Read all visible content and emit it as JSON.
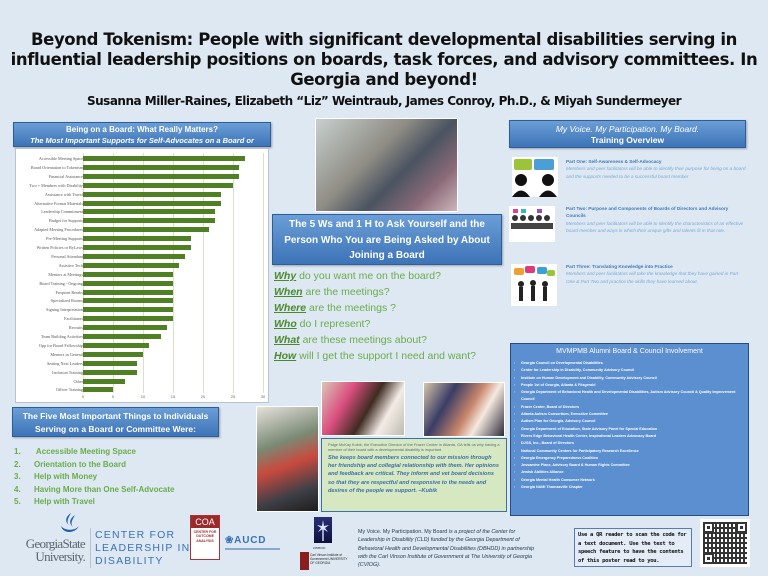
{
  "header": {
    "title": "Beyond Tokenism: People with significant developmental disabilities serving in influential leadership positions on boards, task forces, and advisory committees. In Georgia and beyond!",
    "authors": "Susanna Miller-Raines, Elizabeth “Liz” Weintraub, James Conroy, Ph.D., & Miyah Sundermeyer"
  },
  "left": {
    "banner_title": "Being on a Board: What Really Matters?",
    "banner_subtitle": "The Most Important Supports for Self-Advocates on a Board or Committee",
    "top5_title": "The Five Most Important Things to Individuals Serving on a Board or Committee Were:",
    "top5": [
      {
        "num": "1.",
        "text": " Accessible Meeting Space"
      },
      {
        "num": "2.",
        "text": "Orientation to the Board"
      },
      {
        "num": "3.",
        "text": "Help with Money"
      },
      {
        "num": "4.",
        "text": "Having More than One Self-Advocate"
      },
      {
        "num": "5.",
        "text": "Help with Travel"
      }
    ]
  },
  "chart_data": {
    "type": "bar",
    "orientation": "horizontal",
    "title": "Being on a Board: What Really Matters?",
    "subtitle": "The Most Important Supports for Self-Advocates on a Board or Committee",
    "categories": [
      "Accessible Meeting Space",
      "Board Orientation to Tokenism",
      "Financial Assistance",
      "Two + Members with Disability",
      "Assistance with Travel",
      "Alternative Format Materials",
      "Leadership Commitment",
      "Budget for Supports",
      "Adapted Meeting Procedures",
      "Pre-Meeting Supports",
      "Written Policies or ByLaws",
      "Personal Attendant",
      "Assistive Tech",
      "Mentors at Meetings",
      "Board Training - Ongoing",
      "Frequent Breaks",
      "Specialized Rooms",
      "Signing Interpretation",
      "Facilitators",
      "Recruits",
      "Team Building Activities",
      "Opp for Board Fellowship",
      "Mentors in General",
      "Seating Next Leaders",
      "Inclusion Training",
      "Other",
      "Officer Training"
    ],
    "values": [
      27,
      26,
      26,
      25,
      23,
      23,
      22,
      22,
      21,
      18,
      18,
      17,
      16,
      15,
      15,
      15,
      15,
      15,
      15,
      14,
      13,
      11,
      10,
      9,
      9,
      7,
      5
    ],
    "xlabel": "",
    "ylabel": "",
    "xlim": [
      0,
      30
    ],
    "xticks": [
      "0",
      "5",
      "10",
      "15",
      "20",
      "25",
      "30"
    ],
    "grid": true,
    "bar_color": "#4f8124"
  },
  "center": {
    "ws_banner": "The 5 Ws and 1 H to Ask Yourself and the Person Who You are Being Asked by About Joining a Board",
    "questions": [
      {
        "key": "Why",
        "rest": " do you want me on the board?"
      },
      {
        "key": "When",
        "rest": " are the meetings?"
      },
      {
        "key": "Where",
        "rest": " are the meetings ?"
      },
      {
        "key": "Who",
        "rest": " do I represent?"
      },
      {
        "key": "What",
        "rest": " are these meetings about?"
      },
      {
        "key": "How",
        "rest": " will I get the support I need and want?"
      }
    ],
    "quote_intro": "Paige McKay Kubik, the Executive Director of the Frazer Center in Atlanta, GA tells us why having a member of their board with a developmental disability is important.",
    "quote": "She keeps board members connected to our mission through her friendship and collegial relationship with them. Her opinions and feedback are critical. They inform and vet board decisions so that they are respectful and responsive to the needs and desires of the people we support. –Kubik"
  },
  "right": {
    "banner_line1": "My Voice. My Participation. My Board.",
    "banner_line2": "Training Overview",
    "parts": [
      {
        "title": "Part One: Self-Awareness & Self-Advocacy",
        "desc": "Members and peer facilitators will be able to identify their purpose for being on a board and the supports needed to be a successful board member"
      },
      {
        "title": "Part Two: Purpose and Components of Boards of Directors and Advisory Councils",
        "desc": "Members and peer facilitators will be able to identify the characteristics of an effective board member and ways in which their unique gifts and talents fit in that role."
      },
      {
        "title": "Part Three: Translating Knowledge into Practice",
        "desc": "Members and peer facilitators will take the knowledge that they have gained in Part One & Part Two and practice the skills they have learned about."
      }
    ],
    "alumni_title": "MVMPMB Alumni Board & Council Involvement",
    "alumni": [
      "Georgia Council on Developmental Disabilities",
      "Center for Leadership in Disability, Community Advisory Council",
      "Institute on Human Development and Disability, Community Advisory Council",
      "People 1st of Georgia, Atlanta & Fitzgerald",
      "Georgia Department of Behavioral Health and Developmental Disabilities, Autism Advisory Council & Quality Improvement Council",
      "Frazer Center, Board of Directors",
      "Atlanta Autism Consortium, Executive Committee",
      "Autism Plan for Georgia, Advisory Council",
      "Georgia Department of Education, State Advisory Panel for Special Education",
      "Rivers Edge Behavioral Health Center, Inspirational Leaders Advocacy Board",
      "DJGS, Inc., Board of Directors",
      "National Community Centers for Participatory Research Excellence",
      "Georgia Emergency Preparedness Coalition",
      "Jessamine Place, Advisory Board & Human Rights Committee",
      "Jewish Abilities Alliance",
      "Georgia Mental Health Consumer Network",
      "Georgia NAMI Thomasville Chapter"
    ]
  },
  "footer": {
    "gsu_line1": "GeorgiaState",
    "gsu_line2": "University.",
    "cld_line1": "CENTER FOR",
    "cld_line2": "LEADERSHIP IN",
    "cld_line3": "DISABILITY",
    "coa_top": "COA",
    "coa_sub": "CENTER FOR OUTCOME ANALYSIS",
    "aucd": "❀AUCD",
    "dbhdd": "DBHDD",
    "cvi": "Carl Vinson Institute of Government UNIVERSITY OF GEORGIA",
    "project_lead": "My Voice. My Participation. My Board",
    "project_text": " is a project of the Center for Leadership in Disability (CLD) funded by the Georgia Department of Behavioral Health and Developmental Disabilities (DBHDD) in partnership with the Carl Vinson Institute of Government at The University of Georgia (CVIOG).",
    "qr_note": "Use a QR reader to scan the code for a text document. Use the text to speech feature to have the contents of this poster read to you."
  }
}
